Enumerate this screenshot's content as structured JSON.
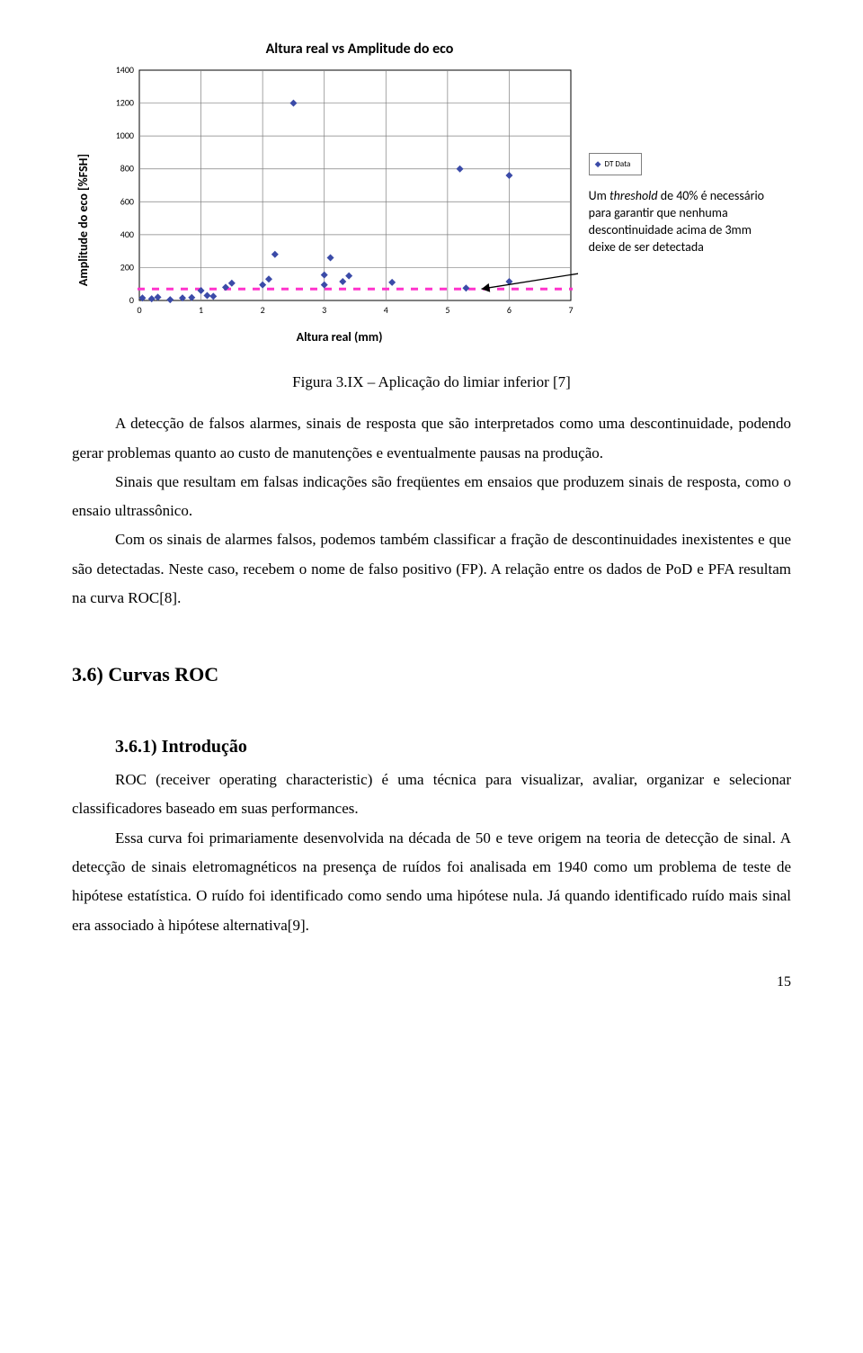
{
  "chart": {
    "type": "scatter",
    "title": "Altura real vs Amplitude do eco",
    "ylabel": "Amplitude do eco [%FSH]",
    "xlabel": "Altura real (mm)",
    "xlim": [
      0,
      7
    ],
    "ylim": [
      0,
      1400
    ],
    "xtick_step": 1,
    "ytick_step": 200,
    "tick_fontsize": 10,
    "grid_color": "#808080",
    "border_color": "#000000",
    "background_color": "#ffffff",
    "marker_color": "#3b4ba8",
    "marker_symbol": "diamond",
    "marker_size": 4,
    "threshold_line": {
      "y": 70,
      "color": "#ff33cc",
      "dash": "8 8",
      "width": 3
    },
    "legend_label": "DT Data",
    "points": [
      {
        "x": 0.05,
        "y": 15
      },
      {
        "x": 0.2,
        "y": 10
      },
      {
        "x": 0.3,
        "y": 20
      },
      {
        "x": 0.5,
        "y": 5
      },
      {
        "x": 0.7,
        "y": 15
      },
      {
        "x": 0.85,
        "y": 18
      },
      {
        "x": 1.0,
        "y": 60
      },
      {
        "x": 1.1,
        "y": 30
      },
      {
        "x": 1.2,
        "y": 25
      },
      {
        "x": 1.4,
        "y": 80
      },
      {
        "x": 1.5,
        "y": 105
      },
      {
        "x": 2.0,
        "y": 95
      },
      {
        "x": 2.1,
        "y": 130
      },
      {
        "x": 2.2,
        "y": 280
      },
      {
        "x": 2.5,
        "y": 1200
      },
      {
        "x": 3.0,
        "y": 155
      },
      {
        "x": 3.0,
        "y": 95
      },
      {
        "x": 3.1,
        "y": 260
      },
      {
        "x": 3.3,
        "y": 115
      },
      {
        "x": 3.4,
        "y": 150
      },
      {
        "x": 4.1,
        "y": 110
      },
      {
        "x": 5.2,
        "y": 800
      },
      {
        "x": 5.3,
        "y": 75
      },
      {
        "x": 6.0,
        "y": 760
      },
      {
        "x": 6.0,
        "y": 115
      }
    ],
    "arrow": {
      "from_x": 7.4,
      "from_y": 180,
      "to_x": 5.55,
      "to_y": 70
    }
  },
  "annotation_text": "Um threshold de 40% é necessário para garantir que nenhuma descontinuidade acima de 3mm deixe de ser detectada",
  "caption": "Figura 3.IX – Aplicação do limiar inferior [7]",
  "para1": "A detecção de falsos alarmes, sinais de resposta que são interpretados como uma descontinuidade, podendo gerar problemas quanto ao custo de manutenções e eventualmente pausas na produção.",
  "para2": "Sinais que resultam em falsas indicações são freqüentes em ensaios que produzem sinais de resposta, como o ensaio ultrassônico.",
  "para3": "Com os sinais de alarmes falsos, podemos também classificar a fração de descontinuidades inexistentes e que são detectadas. Neste caso, recebem o nome de falso positivo (FP). A relação entre os dados de PoD e PFA resultam na curva ROC[8].",
  "h2": "3.6) Curvas ROC",
  "h3": "3.6.1) Introdução",
  "para4": "ROC (receiver operating characteristic) é uma técnica para visualizar, avaliar, organizar e selecionar classificadores baseado em suas performances.",
  "para5": "Essa curva foi primariamente desenvolvida na década de 50 e teve origem na teoria de detecção de sinal. A detecção de sinais eletromagnéticos na presença de ruídos foi analisada em 1940 como um problema de teste de hipótese estatística. O ruído foi identificado como sendo uma hipótese nula. Já quando identificado ruído mais sinal era associado à hipótese alternativa[9].",
  "page_number": "15"
}
